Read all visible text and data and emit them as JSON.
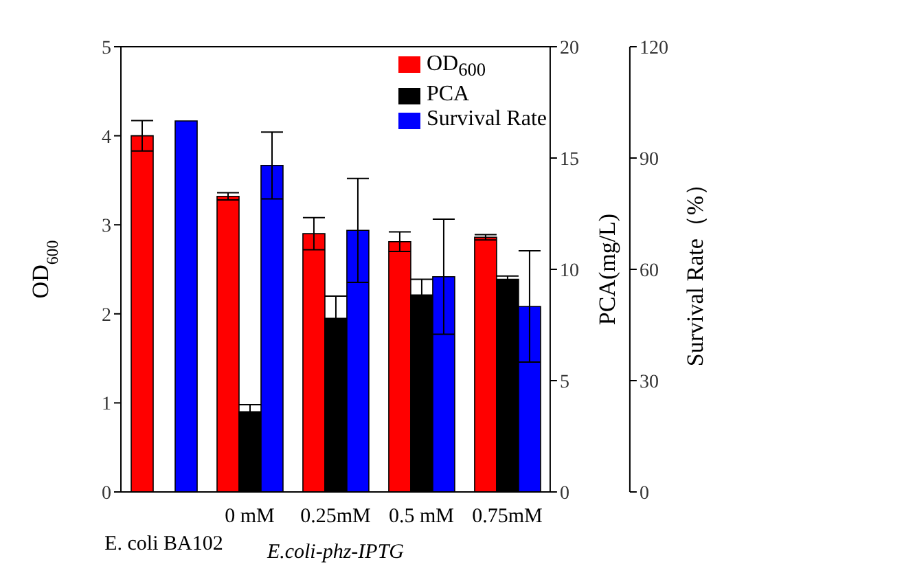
{
  "chart_data": {
    "type": "bar",
    "categories": [
      "E. coli BA102",
      "0 mM",
      "0.25mM",
      "0.5 mM",
      "0.75mM"
    ],
    "xlabel": "E.coli-phz-IPTG",
    "ylabel": "OD$_{600}$",
    "y2label": "PCA(mg/L)",
    "y3label": "Survival Rate（%）",
    "series": [
      {
        "name": "OD$_{600}$",
        "color": "#ff0000",
        "values": [
          4.0,
          3.32,
          2.9,
          2.81,
          2.86
        ],
        "errors": [
          0.17,
          0.04,
          0.18,
          0.11,
          0.03
        ]
      },
      {
        "name": "PCA",
        "color": "#000000",
        "axis": "y2",
        "values": [
          null,
          3.6,
          7.8,
          8.85,
          9.55
        ],
        "errors": [
          null,
          0.32,
          1.0,
          0.7,
          0.15
        ]
      },
      {
        "name": "Survival Rate",
        "color": "#0000ff",
        "axis": "y3",
        "values": [
          100,
          88,
          70.5,
          58,
          50
        ],
        "errors": [
          null,
          9,
          14,
          15.5,
          15
        ]
      }
    ],
    "ylim": [
      0,
      5
    ],
    "yticks": [
      0,
      1,
      2,
      3,
      4,
      5
    ],
    "y2lim": [
      0,
      20
    ],
    "y2ticks": [
      0,
      5,
      10,
      15,
      20
    ],
    "y3lim": [
      0,
      120
    ],
    "y3ticks": [
      0,
      30,
      60,
      90,
      120
    ],
    "legend": "top right",
    "grid": false
  }
}
